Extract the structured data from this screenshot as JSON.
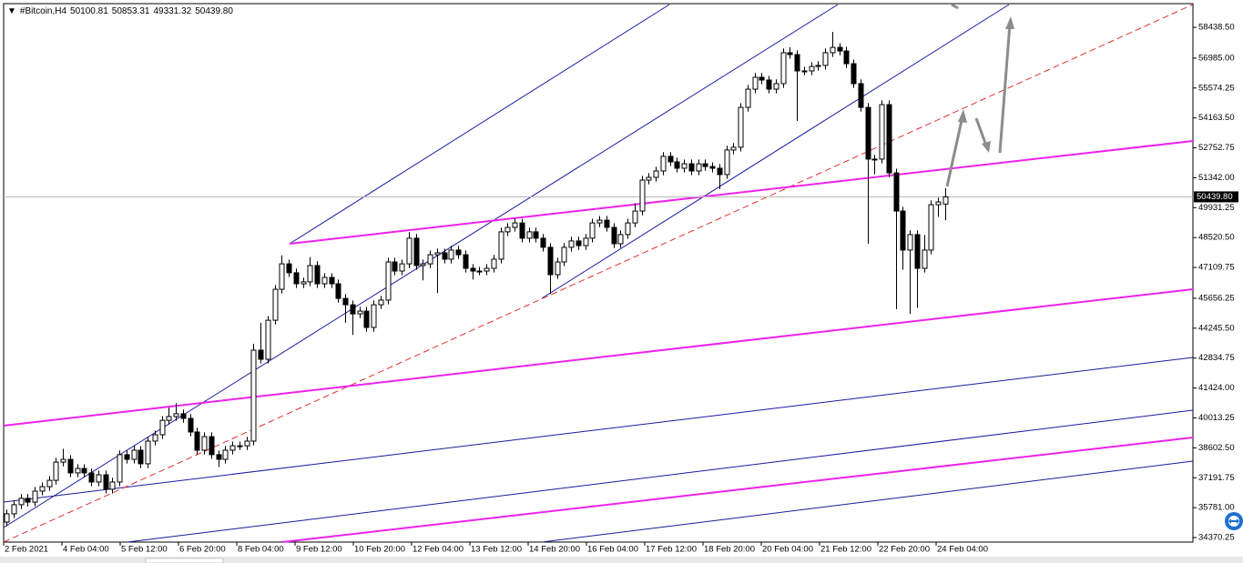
{
  "chart_data": {
    "type": "candlestick",
    "title": "#Bitcoin,H4",
    "header_values": [
      "50100.81",
      "50853.31",
      "49331.32",
      "50439.80"
    ],
    "x_labels": [
      "2 Feb 2021",
      "4 Feb 04:00",
      "5 Feb 12:00",
      "6 Feb 20:00",
      "8 Feb 04:00",
      "9 Feb 12:00",
      "10 Feb 20:00",
      "12 Feb 04:00",
      "13 Feb 12:00",
      "14 Feb 20:00",
      "16 Feb 04:00",
      "17 Feb 12:00",
      "18 Feb 20:00",
      "20 Feb 04:00",
      "21 Feb 12:00",
      "22 Feb 20:00",
      "24 Feb 04:00"
    ],
    "open": [
      35100,
      35490,
      35920,
      36220,
      36040,
      36560,
      36770,
      37070,
      37930,
      38060,
      37420,
      37630,
      37420,
      36990,
      37330,
      36650,
      36990,
      38280,
      38060,
      38490,
      37850,
      38920,
      39220,
      39900,
      40080,
      40210,
      39990,
      39350,
      38490,
      39130,
      38280,
      38060,
      38490,
      38700,
      38700,
      38920,
      43210,
      42780,
      44620,
      46080,
      47280,
      46860,
      46340,
      46430,
      47200,
      46340,
      46640,
      46340,
      45650,
      45350,
      44920,
      45050,
      44280,
      45350,
      45570,
      47370,
      46940,
      47280,
      48490,
      47200,
      47280,
      47710,
      47800,
      47500,
      47930,
      47710,
      47070,
      46940,
      46940,
      47070,
      47500,
      48790,
      49000,
      49210,
      48490,
      48790,
      48490,
      48060,
      46770,
      47370,
      48060,
      48360,
      48140,
      48490,
      49210,
      49340,
      49000,
      48230,
      48660,
      49210,
      49770,
      51230,
      51360,
      51660,
      52350,
      52090,
      51790,
      52000,
      51660,
      52000,
      51870,
      51790,
      51490,
      52650,
      52780,
      54660,
      55520,
      56080,
      55950,
      55520,
      55780,
      57240,
      57150,
      56380,
      56380,
      56590,
      56640,
      57240,
      57490,
      57320,
      56720,
      55780,
      54660,
      52220,
      52220,
      54790,
      51570,
      49770,
      47930,
      48660,
      47070,
      47930,
      50070,
      50100.81
    ],
    "high": [
      35690,
      36120,
      36420,
      36420,
      36760,
      36970,
      37270,
      38130,
      38560,
      38260,
      37830,
      37830,
      37620,
      37530,
      37530,
      37190,
      38480,
      38480,
      38690,
      38690,
      39120,
      39420,
      40100,
      40500,
      40710,
      40410,
      40190,
      39550,
      39330,
      39330,
      38480,
      38690,
      38900,
      38900,
      39120,
      43510,
      44500,
      44820,
      46280,
      47680,
      47480,
      47060,
      46630,
      47600,
      47400,
      46840,
      46840,
      46540,
      45850,
      45550,
      45250,
      45250,
      45550,
      45770,
      47570,
      47570,
      47480,
      48780,
      48690,
      47480,
      47910,
      48000,
      48000,
      48130,
      48130,
      47910,
      47270,
      47140,
      47270,
      47700,
      48990,
      49200,
      49410,
      49410,
      48990,
      48990,
      48690,
      48260,
      47570,
      48260,
      48560,
      48560,
      48690,
      49410,
      49540,
      49540,
      49200,
      48860,
      49410,
      50140,
      51430,
      51560,
      51860,
      52550,
      52550,
      52290,
      52200,
      52200,
      52200,
      52200,
      52070,
      51990,
      52850,
      52980,
      54860,
      55720,
      56280,
      56280,
      56150,
      55980,
      57440,
      57500,
      57350,
      56580,
      56790,
      56840,
      57440,
      58220,
      57690,
      57520,
      56920,
      55980,
      54860,
      52420,
      54990,
      54990,
      51770,
      49970,
      48860,
      48860,
      48640,
      50270,
      50400,
      50853.31
    ],
    "low": [
      34900,
      35290,
      35720,
      35840,
      35840,
      36360,
      36570,
      36870,
      37730,
      37220,
      37220,
      37220,
      36790,
      36790,
      36450,
      36450,
      36790,
      37860,
      37860,
      37650,
      37650,
      38720,
      39020,
      39700,
      39880,
      39790,
      39150,
      38290,
      38290,
      38080,
      37700,
      37860,
      38290,
      38500,
      38500,
      38720,
      42580,
      42580,
      44420,
      45880,
      46660,
      46140,
      46140,
      46230,
      46140,
      46140,
      46140,
      45450,
      44500,
      43930,
      44720,
      44080,
      44080,
      45150,
      45370,
      46740,
      46740,
      47080,
      47000,
      46500,
      47080,
      45900,
      47300,
      47300,
      47510,
      46870,
      46540,
      46740,
      46740,
      46870,
      47300,
      48590,
      48800,
      48290,
      48290,
      48290,
      47860,
      45850,
      46570,
      47170,
      47860,
      47940,
      47940,
      48290,
      49010,
      48800,
      48030,
      48030,
      48460,
      49010,
      49570,
      51030,
      51160,
      51460,
      51890,
      51590,
      51590,
      51460,
      51460,
      51670,
      51590,
      50800,
      51290,
      52450,
      52580,
      54460,
      55320,
      55750,
      55320,
      55320,
      55580,
      56950,
      54020,
      56180,
      56180,
      56390,
      56440,
      57040,
      57120,
      56520,
      55580,
      54460,
      48230,
      51500,
      52020,
      51370,
      45140,
      47000,
      44920,
      45210,
      46870,
      47730,
      49500,
      49331.32
    ],
    "close": [
      35490,
      35920,
      36220,
      36040,
      36560,
      36770,
      37070,
      37930,
      38060,
      37420,
      37630,
      37420,
      36990,
      37330,
      36650,
      36990,
      38280,
      38060,
      38490,
      37850,
      38920,
      39220,
      39900,
      40080,
      40210,
      39990,
      39350,
      38490,
      39130,
      38280,
      38060,
      38490,
      38700,
      38700,
      38920,
      43210,
      42780,
      44620,
      46080,
      47280,
      46860,
      46340,
      46430,
      47200,
      46340,
      46640,
      46340,
      45650,
      45350,
      44920,
      45050,
      44280,
      45350,
      45570,
      47370,
      46940,
      47280,
      48490,
      47200,
      47280,
      47710,
      47800,
      47500,
      47930,
      47710,
      47070,
      46940,
      46940,
      47070,
      47500,
      48790,
      49000,
      49210,
      48490,
      48790,
      48490,
      48060,
      46770,
      47370,
      48060,
      48360,
      48140,
      48490,
      49210,
      49340,
      49000,
      48230,
      48660,
      49210,
      49770,
      51230,
      51360,
      51660,
      52350,
      52090,
      51790,
      52000,
      51660,
      52000,
      51870,
      51790,
      51490,
      52650,
      52780,
      54660,
      55520,
      56080,
      55950,
      55520,
      55780,
      57240,
      57150,
      56380,
      56380,
      56590,
      56640,
      57240,
      57490,
      57320,
      56720,
      55780,
      54660,
      52220,
      52220,
      54790,
      51570,
      49770,
      47930,
      48660,
      47070,
      47930,
      50070,
      50200,
      50439.8
    ],
    "ylim": [
      34157,
      59725
    ],
    "yticks": [
      {
        "value": 58438.5,
        "label": "58438.50"
      },
      {
        "value": 56985,
        "label": "56985.00"
      },
      {
        "value": 55574.25,
        "label": "55574.25"
      },
      {
        "value": 54163.5,
        "label": "54163.50"
      },
      {
        "value": 52752.75,
        "label": "52752.75"
      },
      {
        "value": 51342,
        "label": "51342.00"
      },
      {
        "value": 49931.25,
        "label": "49931.25"
      },
      {
        "value": 48520.5,
        "label": "48520.50"
      },
      {
        "value": 47109.75,
        "label": "47109.75"
      },
      {
        "value": 45656.25,
        "label": "45656.25"
      },
      {
        "value": 44245.5,
        "label": "44245.50"
      },
      {
        "value": 42834.75,
        "label": "42834.75"
      },
      {
        "value": 41424,
        "label": "41424.00"
      },
      {
        "value": 40013.25,
        "label": "40013.25"
      },
      {
        "value": 38602.5,
        "label": "38602.50"
      },
      {
        "value": 37191.75,
        "label": "37191.75"
      },
      {
        "value": 35781,
        "label": "35781.00"
      },
      {
        "value": 34370.25,
        "label": "34370.25"
      }
    ],
    "last_price": {
      "value": 50439.8,
      "label": "50439.80"
    },
    "bull_color": "#ffffff",
    "bear_color": "#000000",
    "grid": false
  }
}
